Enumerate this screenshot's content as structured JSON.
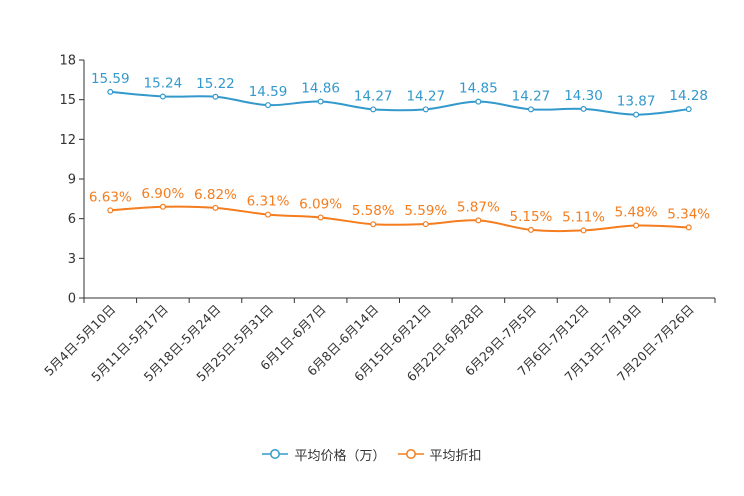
{
  "chart_data": {
    "type": "line",
    "title": "",
    "xlabel": "",
    "ylabel": "",
    "ylim": [
      0,
      18
    ],
    "yticks": [
      0,
      3,
      6,
      9,
      12,
      15,
      18
    ],
    "categories": [
      "5月4日-5月10日",
      "5月11日-5月17日",
      "5月18日-5月24日",
      "5月25日-5月31日",
      "6月1日-6月7日",
      "6月8日-6月14日",
      "6月15日-6月21日",
      "6月22日-6月28日",
      "6月29日-7月5日",
      "7月6日-7月12日",
      "7月13日-7月19日",
      "7月20日-7月26日"
    ],
    "series": [
      {
        "name": "平均价格（万）",
        "color": "#3399cc",
        "values": [
          15.59,
          15.24,
          15.22,
          14.59,
          14.86,
          14.27,
          14.27,
          14.85,
          14.27,
          14.3,
          13.87,
          14.28
        ],
        "labels": [
          "15.59",
          "15.24",
          "15.22",
          "14.59",
          "14.86",
          "14.27",
          "14.27",
          "14.85",
          "14.27",
          "14.30",
          "13.87",
          "14.28"
        ]
      },
      {
        "name": "平均折扣",
        "color": "#f47d1f",
        "values": [
          6.63,
          6.9,
          6.82,
          6.31,
          6.09,
          5.58,
          5.59,
          5.87,
          5.15,
          5.11,
          5.48,
          5.34
        ],
        "labels": [
          "6.63%",
          "6.90%",
          "6.82%",
          "6.31%",
          "6.09%",
          "5.58%",
          "5.59%",
          "5.87%",
          "5.15%",
          "5.11%",
          "5.48%",
          "5.34%"
        ]
      }
    ],
    "legend_position": "bottom-center",
    "grid": false
  }
}
